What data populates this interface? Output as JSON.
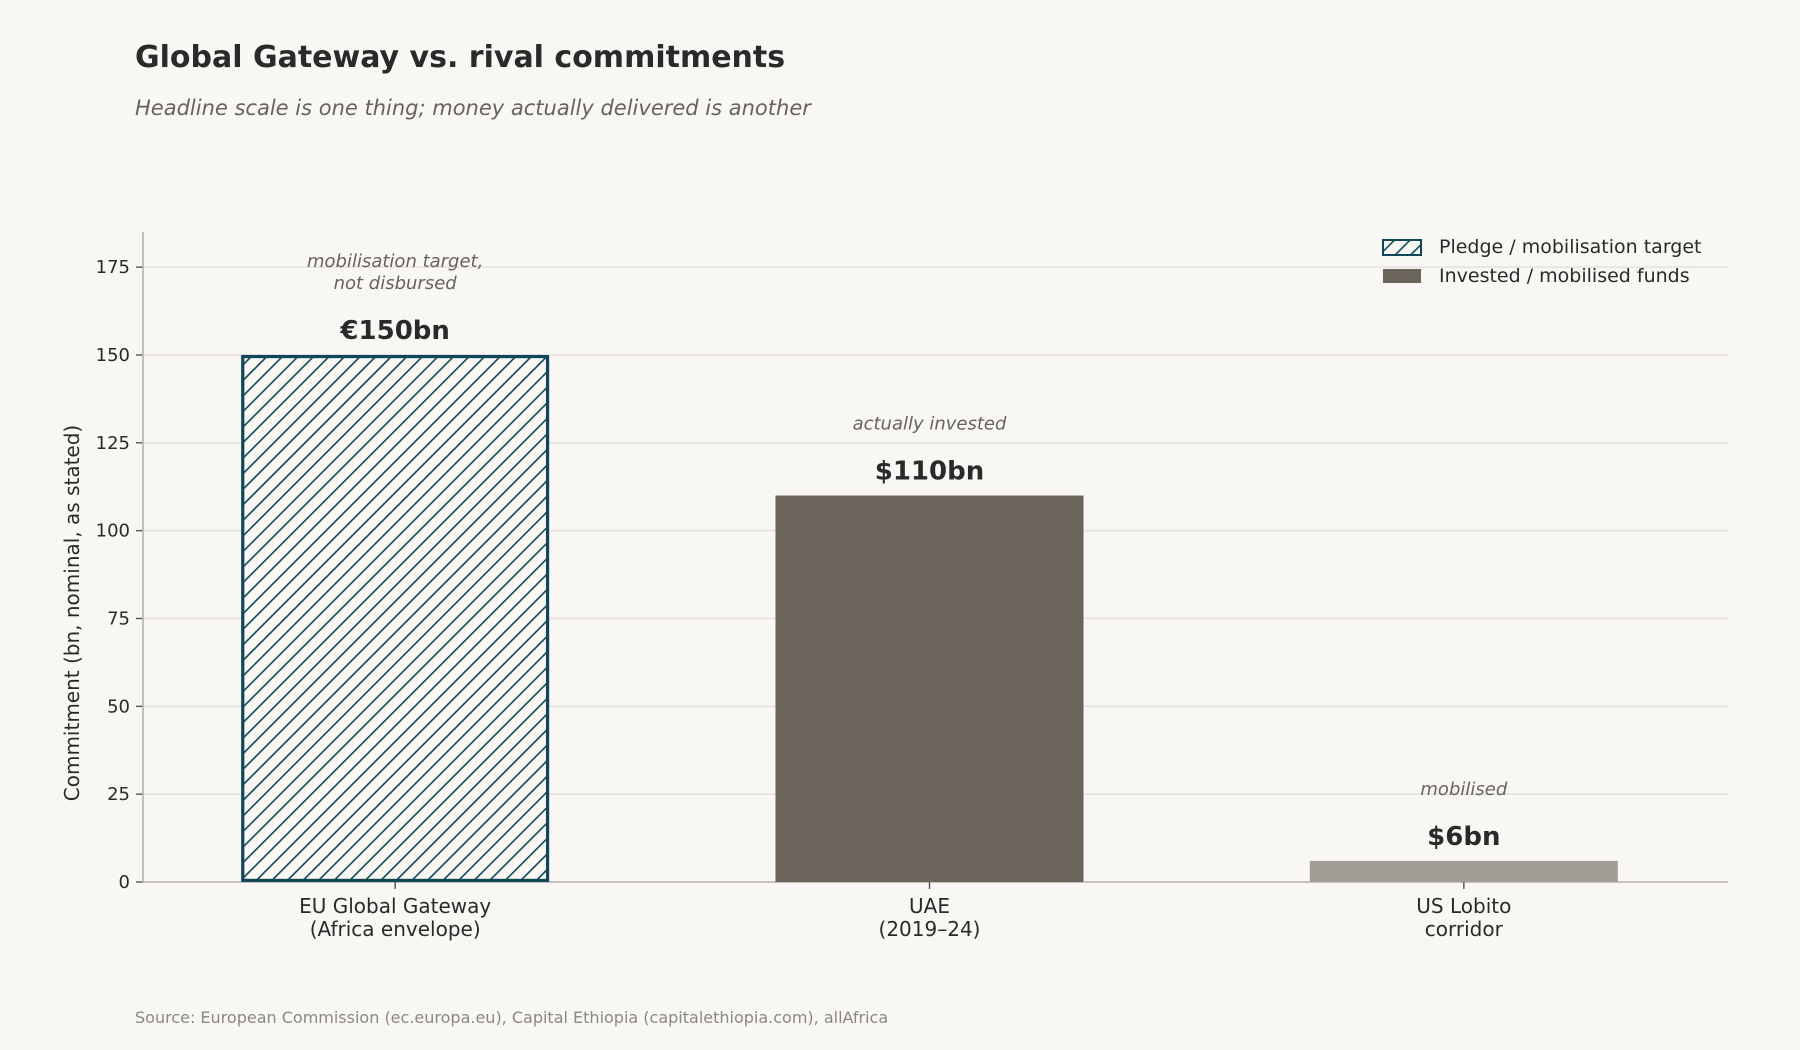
{
  "header": {
    "title": "Global Gateway vs. rival commitments",
    "subtitle": "Headline scale is one thing; money actually delivered is another"
  },
  "footer": {
    "source": "Source: European Commission (ec.europa.eu), Capital Ethiopia (capitalethiopia.com), allAfrica"
  },
  "colors": {
    "pledge_edge": "#0f4759",
    "pledge_fill": "#f9f7f4",
    "invested": "#6b645a",
    "invested_light": "#a29d94",
    "grid": "#e4e1dd",
    "axis": "#b5b2ad",
    "background": "#f9f7f4"
  },
  "chart_data": {
    "type": "bar",
    "ylabel": "Commitment (bn, nominal, as stated)",
    "xlabel": "",
    "ylim": [
      0,
      185
    ],
    "yticks": [
      0,
      25,
      50,
      75,
      100,
      125,
      150,
      175
    ],
    "grid": true,
    "legend_placement": "top-right",
    "legend": [
      {
        "label": "Pledge / mobilisation target",
        "style": "hatched"
      },
      {
        "label": "Invested / mobilised funds",
        "style": "solid"
      }
    ],
    "categories": [
      [
        "EU Global Gateway",
        "(Africa envelope)"
      ],
      [
        "UAE",
        "(2019–24)"
      ],
      [
        "US Lobito",
        "corridor"
      ]
    ],
    "bars": [
      {
        "value": 150,
        "value_label": "€150bn",
        "annotation": [
          "mobilisation target,",
          "not disbursed"
        ],
        "kind": "pledge"
      },
      {
        "value": 110,
        "value_label": "$110bn",
        "annotation": [
          "actually invested"
        ],
        "kind": "invested"
      },
      {
        "value": 6,
        "value_label": "$6bn",
        "annotation": [
          "mobilised"
        ],
        "kind": "invested_light"
      }
    ]
  }
}
